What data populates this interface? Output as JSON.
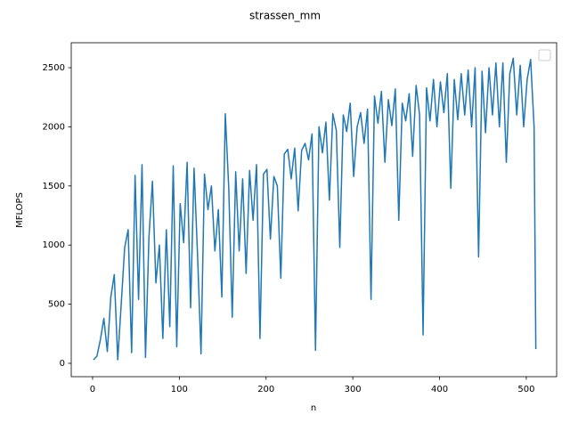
{
  "chart_data": {
    "type": "line",
    "title": "strassen_mm",
    "x_label": "n",
    "y_label": "MFLOPS",
    "x": [
      1,
      5,
      9,
      13,
      17,
      21,
      25,
      29,
      33,
      37,
      41,
      45,
      49,
      53,
      57,
      61,
      65,
      69,
      73,
      77,
      81,
      85,
      89,
      93,
      97,
      101,
      105,
      109,
      113,
      117,
      121,
      125,
      129,
      133,
      137,
      141,
      145,
      149,
      153,
      157,
      161,
      165,
      169,
      173,
      177,
      181,
      185,
      189,
      193,
      197,
      201,
      205,
      209,
      213,
      217,
      221,
      225,
      229,
      233,
      237,
      241,
      245,
      249,
      253,
      257,
      261,
      265,
      269,
      273,
      277,
      281,
      285,
      289,
      293,
      297,
      301,
      305,
      309,
      313,
      317,
      321,
      325,
      329,
      333,
      337,
      341,
      345,
      349,
      353,
      357,
      361,
      365,
      369,
      373,
      377,
      381,
      385,
      389,
      393,
      397,
      401,
      405,
      409,
      413,
      417,
      421,
      425,
      429,
      433,
      437,
      441,
      445,
      449,
      453,
      457,
      461,
      465,
      469,
      473,
      477,
      481,
      485,
      489,
      493,
      497,
      501,
      505,
      509,
      511
    ],
    "series": [
      {
        "color": "#1f77b4",
        "values": [
          30,
          60,
          200,
          380,
          100,
          560,
          750,
          30,
          500,
          980,
          1130,
          90,
          1590,
          540,
          1680,
          50,
          1070,
          1540,
          680,
          1000,
          210,
          1130,
          310,
          1670,
          140,
          1350,
          1020,
          1700,
          470,
          1650,
          920,
          80,
          1600,
          1300,
          1500,
          950,
          1300,
          560,
          2110,
          1480,
          390,
          1620,
          950,
          1560,
          760,
          1630,
          1210,
          1680,
          210,
          1600,
          1640,
          1050,
          1580,
          1500,
          720,
          1770,
          1810,
          1560,
          1820,
          1290,
          1800,
          1860,
          1720,
          1940,
          110,
          2000,
          1780,
          2040,
          1380,
          2110,
          1970,
          980,
          2100,
          1960,
          2200,
          1580,
          2000,
          2120,
          1860,
          2150,
          540,
          2260,
          2030,
          2300,
          1700,
          2230,
          2010,
          2320,
          1210,
          2200,
          2050,
          2280,
          1750,
          2350,
          2100,
          240,
          2330,
          2050,
          2400,
          2000,
          2380,
          2120,
          2450,
          1480,
          2400,
          2060,
          2450,
          2100,
          2480,
          2000,
          2500,
          900,
          2470,
          1950,
          2500,
          2100,
          2540,
          2000,
          2540,
          1700,
          2450,
          2580,
          2100,
          2520,
          2000,
          2400,
          2570,
          2000,
          120
        ]
      }
    ],
    "xlim": [
      -24.6,
      535
    ],
    "ylim": [
      -113,
      2711
    ],
    "xticks": [
      0,
      100,
      200,
      300,
      400,
      500
    ],
    "yticks": [
      0,
      500,
      1000,
      1500,
      2000,
      2500
    ]
  }
}
